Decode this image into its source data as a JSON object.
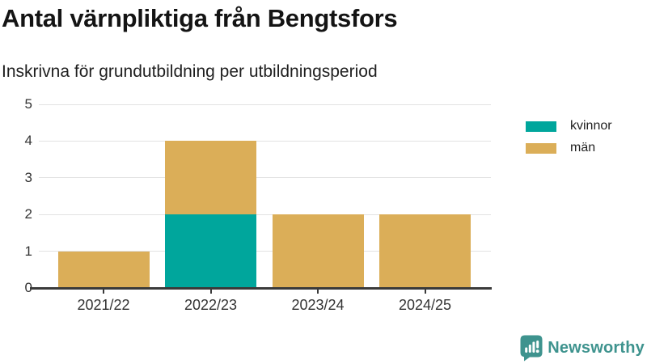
{
  "title": "Antal värnpliktiga från Bengtsfors",
  "subtitle": "Inskrivna för grundutbildning per utbildningsperiod",
  "chart_data": {
    "type": "bar",
    "stacked": true,
    "categories": [
      "2021/22",
      "2022/23",
      "2023/24",
      "2024/25"
    ],
    "series": [
      {
        "name": "kvinnor",
        "color": "#00a69c",
        "values": [
          0,
          2,
          0,
          0
        ]
      },
      {
        "name": "män",
        "color": "#dbae58",
        "values": [
          1,
          2,
          2,
          2
        ]
      }
    ],
    "totals": [
      1,
      4,
      2,
      2
    ],
    "ylabel": "",
    "xlabel": "",
    "ylim": [
      0,
      5
    ],
    "yticks": [
      0,
      1,
      2,
      3,
      4,
      5
    ],
    "grid": true,
    "legend_position": "right"
  },
  "legend": {
    "items": [
      {
        "label": "kvinnor",
        "color": "#00a69c"
      },
      {
        "label": "män",
        "color": "#dbae58"
      }
    ]
  },
  "branding": {
    "logo_text": "Newsworthy",
    "logo_color": "#3e938e"
  },
  "colors": {
    "axis": "#3a3a3a",
    "grid": "#e2e2e2",
    "tick_text": "#333333",
    "title_text": "#141414"
  }
}
